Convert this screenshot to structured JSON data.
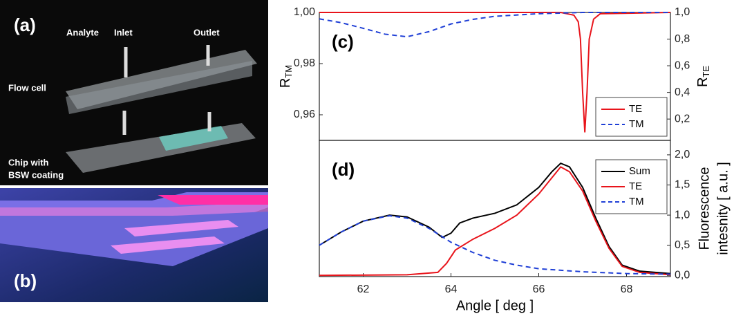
{
  "panels": {
    "a": {
      "label": "(a)",
      "annotations": [
        "Analyte",
        "Inlet",
        "Outlet",
        "Flow cell",
        "Chip with",
        "BSW coating"
      ]
    },
    "b": {
      "label": "(b)"
    }
  },
  "chart_data": [
    {
      "type": "line",
      "panel_label": "(c)",
      "ylabel": {
        "text": "R",
        "sub": "TM"
      },
      "y2label": {
        "text": "R",
        "sub": "TE"
      },
      "xlim": [
        61,
        69
      ],
      "ylim": [
        0.95,
        1.0
      ],
      "yticks": [
        {
          "value": 0.96,
          "label": "0,96"
        },
        {
          "value": 0.98,
          "label": "0,98"
        },
        {
          "value": 1.0,
          "label": "1,00"
        }
      ],
      "y2lim": [
        0.04,
        1.0
      ],
      "y2ticks": [
        {
          "value": 0.2,
          "label": "0,2"
        },
        {
          "value": 0.4,
          "label": "0,4"
        },
        {
          "value": 0.6,
          "label": "0,6"
        },
        {
          "value": 0.8,
          "label": "0,8"
        },
        {
          "value": 1.0,
          "label": "1,0"
        }
      ],
      "legend": "lower right",
      "series": [
        {
          "name": "TE",
          "color": "#e8141b",
          "dash": false,
          "axis": "y2",
          "x": [
            61,
            66.5,
            66.8,
            66.9,
            66.95,
            67.0,
            67.05,
            67.1,
            67.15,
            67.25,
            67.4,
            69
          ],
          "values": [
            1.0,
            1.0,
            0.98,
            0.93,
            0.8,
            0.4,
            0.1,
            0.4,
            0.8,
            0.95,
            0.99,
            1.0
          ]
        },
        {
          "name": "TM",
          "color": "#1f3fd6",
          "dash": true,
          "axis": "y",
          "x": [
            61,
            61.5,
            62,
            62.5,
            63,
            63.5,
            64,
            64.5,
            65,
            66,
            67,
            69
          ],
          "values": [
            0.9975,
            0.996,
            0.9938,
            0.9915,
            0.9905,
            0.9925,
            0.9955,
            0.9973,
            0.9985,
            0.9995,
            1.0,
            1.0
          ]
        }
      ]
    },
    {
      "type": "line",
      "panel_label": "(d)",
      "xlabel": "Angle [ deg ]",
      "y2label_lines": [
        "Fluorescence",
        "intesnity [ a.u. ]"
      ],
      "xlim": [
        61,
        69
      ],
      "xticks": [
        62,
        64,
        66,
        68
      ],
      "y2lim": [
        -0.02,
        2.24
      ],
      "y2ticks": [
        {
          "value": 0.0,
          "label": "0,0"
        },
        {
          "value": 0.5,
          "label": "0,5"
        },
        {
          "value": 1.0,
          "label": "1,0"
        },
        {
          "value": 1.5,
          "label": "1,5"
        },
        {
          "value": 2.0,
          "label": "2,0"
        }
      ],
      "legend": "upper right",
      "series": [
        {
          "name": "Sum",
          "color": "#000000",
          "dash": false,
          "axis": "y2",
          "x": [
            61,
            61.5,
            62,
            62.6,
            63,
            63.5,
            63.8,
            64,
            64.2,
            64.5,
            65,
            65.5,
            66,
            66.3,
            66.5,
            66.7,
            67,
            67.3,
            67.6,
            67.9,
            68.3,
            69
          ],
          "values": [
            0.5,
            0.72,
            0.9,
            1.0,
            0.97,
            0.8,
            0.63,
            0.7,
            0.87,
            0.95,
            1.03,
            1.17,
            1.46,
            1.72,
            1.86,
            1.8,
            1.46,
            0.95,
            0.48,
            0.17,
            0.07,
            0.03
          ]
        },
        {
          "name": "TE",
          "color": "#e8141b",
          "dash": false,
          "axis": "y2",
          "x": [
            61,
            63,
            63.7,
            63.9,
            64.1,
            64.5,
            65,
            65.5,
            66,
            66.3,
            66.5,
            66.7,
            67,
            67.3,
            67.6,
            67.9,
            68.3,
            69
          ],
          "values": [
            0.0,
            0.01,
            0.05,
            0.2,
            0.42,
            0.6,
            0.78,
            1.0,
            1.35,
            1.62,
            1.8,
            1.72,
            1.4,
            0.9,
            0.45,
            0.15,
            0.05,
            0.01
          ]
        },
        {
          "name": "TM",
          "color": "#1f3fd6",
          "dash": true,
          "axis": "y2",
          "x": [
            61,
            61.5,
            62,
            62.6,
            63,
            63.5,
            64,
            64.5,
            65,
            65.5,
            66,
            67,
            68,
            69
          ],
          "values": [
            0.5,
            0.72,
            0.9,
            0.99,
            0.95,
            0.78,
            0.55,
            0.38,
            0.25,
            0.17,
            0.11,
            0.06,
            0.03,
            0.02
          ]
        }
      ]
    }
  ]
}
